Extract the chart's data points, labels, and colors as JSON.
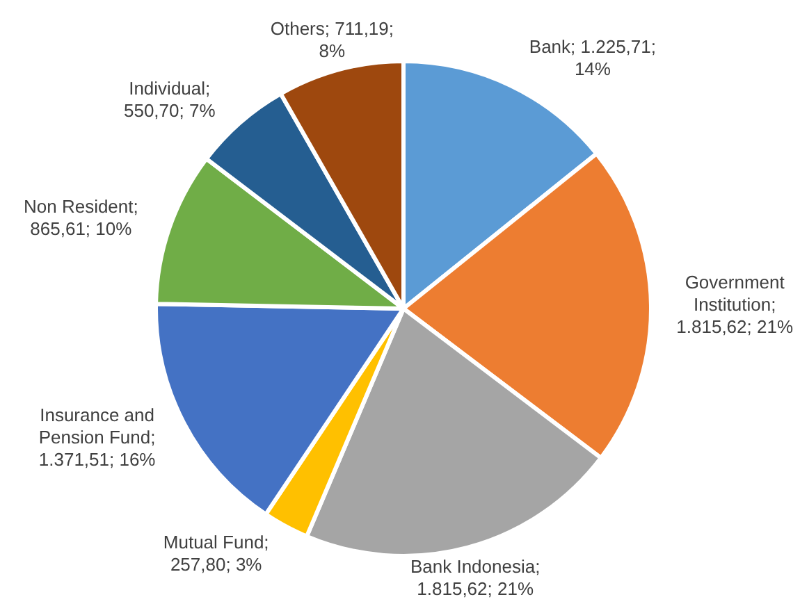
{
  "chart_data": {
    "type": "pie",
    "categories": [
      "Bank",
      "Government Institution",
      "Bank Indonesia",
      "Mutual Fund",
      "Insurance and Pension Fund",
      "Non Resident",
      "Individual",
      "Others"
    ],
    "values": [
      1225.71,
      1815.62,
      1815.62,
      257.8,
      1371.51,
      865.61,
      550.7,
      711.19
    ],
    "colors": [
      "#5b9bd5",
      "#ed7d31",
      "#a5a5a5",
      "#ffc000",
      "#4472c4",
      "#70ad47",
      "#255e91",
      "#9e480e"
    ],
    "value_labels": [
      "; 1.225,71; 14%",
      "; 1.815,62; 21%",
      "; 1.815,62; 21%",
      "; 257,80; 3%",
      "; 1.371,51; 16%",
      "; 865,61; 10%",
      "; 550,70; 7%",
      "; 711,19; 8%"
    ]
  }
}
